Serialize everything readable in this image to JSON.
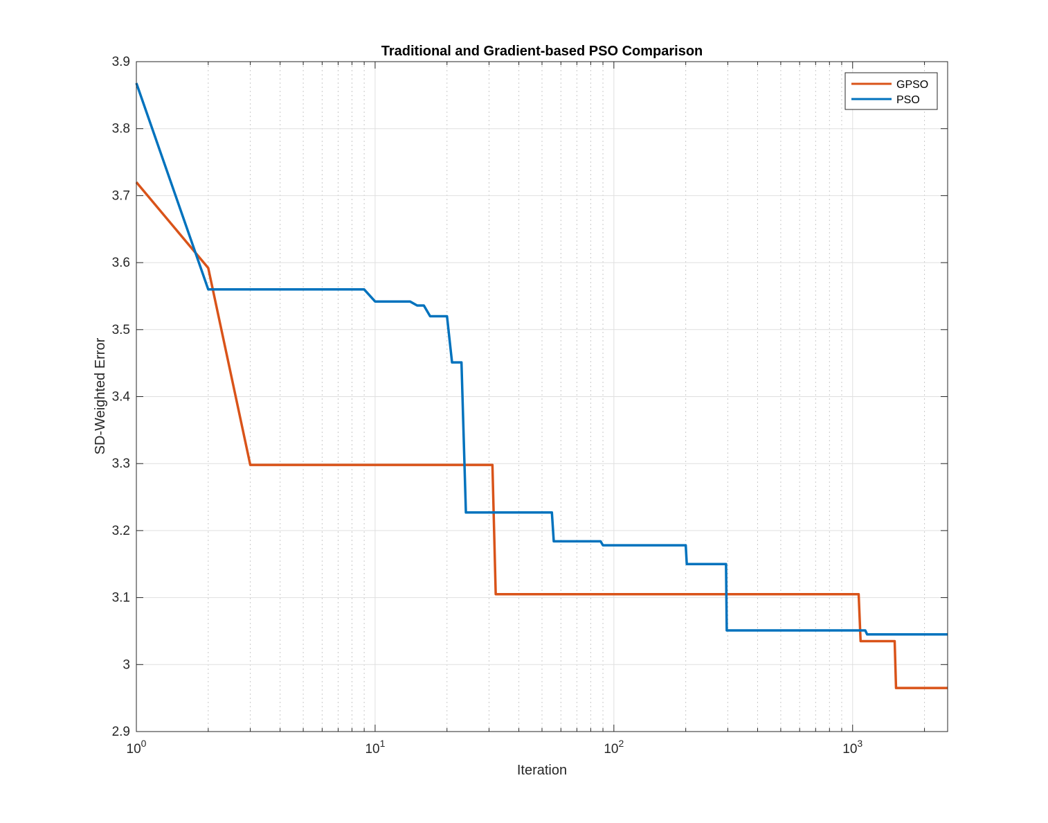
{
  "chart_data": {
    "type": "line",
    "title": "Traditional and Gradient-based PSO Comparison",
    "xlabel": "Iteration",
    "ylabel": "SD-Weighted Error",
    "x_scale": "log",
    "xlim": [
      1,
      2500
    ],
    "ylim": [
      2.9,
      3.9
    ],
    "x_ticks": [
      1,
      10,
      100,
      1000
    ],
    "x_tick_labels": [
      {
        "base": "10",
        "exp": "0"
      },
      {
        "base": "10",
        "exp": "1"
      },
      {
        "base": "10",
        "exp": "2"
      },
      {
        "base": "10",
        "exp": "3"
      }
    ],
    "y_ticks": [
      2.9,
      3.0,
      3.1,
      3.2,
      3.3,
      3.4,
      3.5,
      3.6,
      3.7,
      3.8,
      3.9
    ],
    "y_tick_labels": [
      "2.9",
      "3",
      "3.1",
      "3.2",
      "3.3",
      "3.4",
      "3.5",
      "3.6",
      "3.7",
      "3.8",
      "3.9"
    ],
    "grid": true,
    "minor_grid": true,
    "legend_position": "top-right",
    "series": [
      {
        "name": "GPSO",
        "color": "#d95319",
        "x": [
          1,
          2,
          3,
          31,
          32,
          1060,
          1080,
          1500,
          1520,
          2500
        ],
        "y": [
          3.72,
          3.592,
          3.298,
          3.298,
          3.105,
          3.105,
          3.035,
          3.035,
          2.965,
          2.965
        ]
      },
      {
        "name": "PSO",
        "color": "#0072bd",
        "x": [
          1,
          2,
          9,
          10,
          14,
          15,
          16,
          17,
          20,
          21,
          23,
          24,
          55,
          56,
          88,
          90,
          200,
          202,
          295,
          297,
          1130,
          1150,
          2500
        ],
        "y": [
          3.868,
          3.56,
          3.56,
          3.542,
          3.542,
          3.536,
          3.536,
          3.52,
          3.52,
          3.451,
          3.451,
          3.227,
          3.227,
          3.184,
          3.184,
          3.178,
          3.178,
          3.15,
          3.15,
          3.051,
          3.051,
          3.045,
          3.045
        ]
      }
    ]
  }
}
